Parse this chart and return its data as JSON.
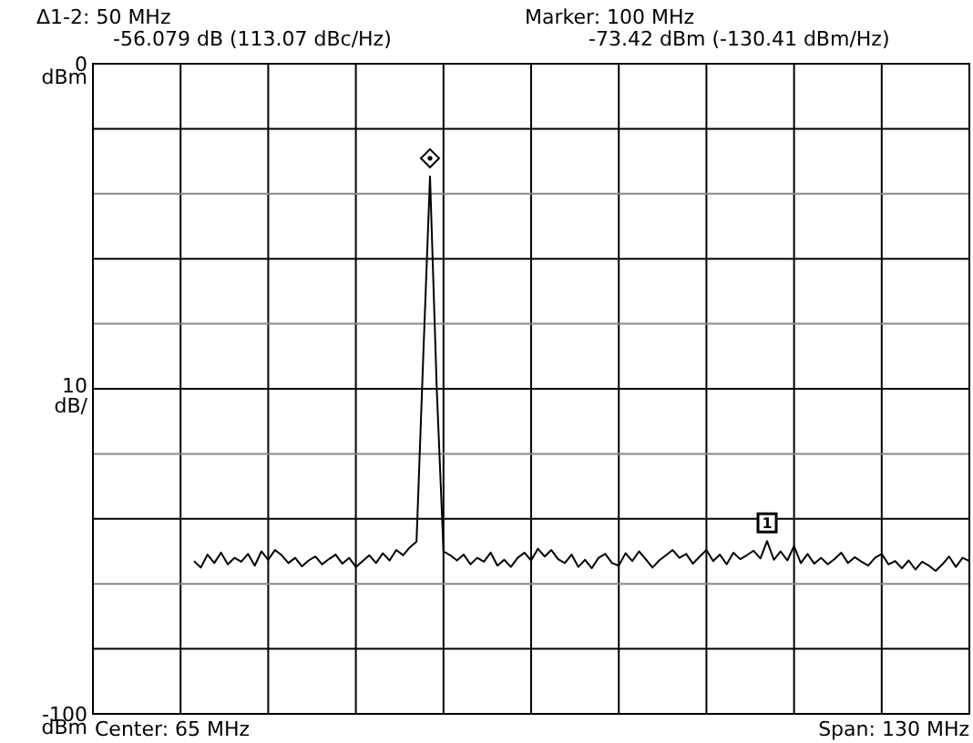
{
  "chart_data": {
    "type": "line",
    "ylabel": "10 dB/",
    "annotations": [
      "Δ1-2: 50 MHz",
      "-56.079 dB (113.07 dBc/Hz)",
      "Marker: 100 MHz",
      "-73.42 dBm (-130.41 dBm/Hz)",
      "Center: 65 MHz",
      "Span: 130 MHz",
      "dBm",
      "dBm",
      {
        "text": "1",
        "y": -73.42
      }
    ],
    "categories": [
      null,
      null,
      null,
      null,
      null,
      null,
      null,
      null,
      null,
      null,
      null,
      null,
      null,
      null,
      null,
      null,
      null,
      null,
      null,
      null,
      null,
      null,
      null,
      null,
      null,
      null,
      null,
      null,
      null,
      null,
      null,
      null,
      null,
      null,
      null,
      null,
      null,
      null,
      null,
      null,
      null,
      null,
      null,
      null,
      null,
      null,
      null,
      null,
      null,
      null,
      null,
      null,
      null,
      null,
      null,
      null,
      null,
      null,
      null,
      null,
      null,
      null,
      null,
      null,
      null,
      null,
      null,
      null,
      null,
      null,
      null,
      null,
      null,
      null,
      null,
      null,
      null,
      null,
      null,
      null,
      null,
      null,
      null,
      null,
      null,
      null,
      null,
      null,
      null,
      null,
      null,
      null,
      null,
      null,
      null,
      null,
      null,
      null,
      null,
      null,
      null,
      null,
      null,
      null,
      null,
      null,
      null,
      null,
      null,
      null,
      null,
      null,
      null,
      null,
      null,
      null,
      null,
      null,
      null,
      null,
      null,
      null,
      null,
      null,
      null,
      null,
      null,
      null,
      null,
      null,
      null
    ],
    "series": [
      {
        "color": "#000000",
        "values": [
          null,
          null,
          null,
          null,
          null,
          null,
          null,
          null,
          null,
          null,
          null,
          null,
          null,
          null,
          null,
          -76.5,
          -77.5,
          -75.5,
          -76.8,
          -75.2,
          -77,
          -76,
          -76.6,
          -75.4,
          -77.2,
          -75,
          -76.3,
          -74.8,
          -75.6,
          -76.8,
          -76,
          -77.3,
          -76.4,
          -75.8,
          -77,
          -76.2,
          -75.5,
          -76.9,
          -76,
          -77.4,
          -76.5,
          -75.6,
          -76.8,
          -75.3,
          -76.4,
          -74.8,
          -75.6,
          -74.4,
          -73.5,
          -45,
          -17.34,
          -50,
          -75,
          -75.6,
          -76.4,
          -75.5,
          -77,
          -76,
          -76.6,
          -75.2,
          -77.2,
          -76.3,
          -77.4,
          -76,
          -75.2,
          -76.4,
          -74.6,
          -75.8,
          -74.8,
          -76.2,
          -76.8,
          -75.5,
          -77.4,
          -76.3,
          -77.6,
          -76,
          -75.4,
          -76.8,
          -77.2,
          -75.3,
          -76.5,
          -75,
          -76.2,
          -77.5,
          -76.4,
          -75.6,
          -74.8,
          -76,
          -75.4,
          -76.9,
          -75.8,
          -74.8,
          -76.5,
          -75.5,
          -77,
          -75.2,
          -76.2,
          -75.6,
          -74.9,
          -76.1,
          -73.42,
          -76.3,
          -75,
          -76.4,
          -74.2,
          -76.8,
          -75.4,
          -76.9,
          -76,
          -77,
          -76.2,
          -75.2,
          -76.8,
          -75.9,
          -76.6,
          -77.2,
          -76,
          -75.4,
          -77,
          -76.5,
          -77.6,
          -76.4,
          -77.8,
          -76.6,
          -77.2,
          -78,
          -77,
          -75.8,
          -77.4,
          -76,
          -76.5
        ]
      }
    ],
    "ylim": [
      -100,
      0
    ],
    "yticks": [
      -100,
      {
        "value": -90,
        "label": null
      },
      {
        "value": -80,
        "label": null
      },
      {
        "value": -70,
        "label": null
      },
      {
        "value": -60,
        "label": null
      },
      {
        "value": -50,
        "label": null
      },
      {
        "value": -40,
        "label": null
      },
      {
        "value": -30,
        "label": null
      },
      {
        "value": -20,
        "label": null
      },
      {
        "value": -10,
        "label": null
      },
      0
    ],
    "grid": true,
    "tick_labels": "y",
    "marker": "none",
    "line_style": "solid"
  }
}
